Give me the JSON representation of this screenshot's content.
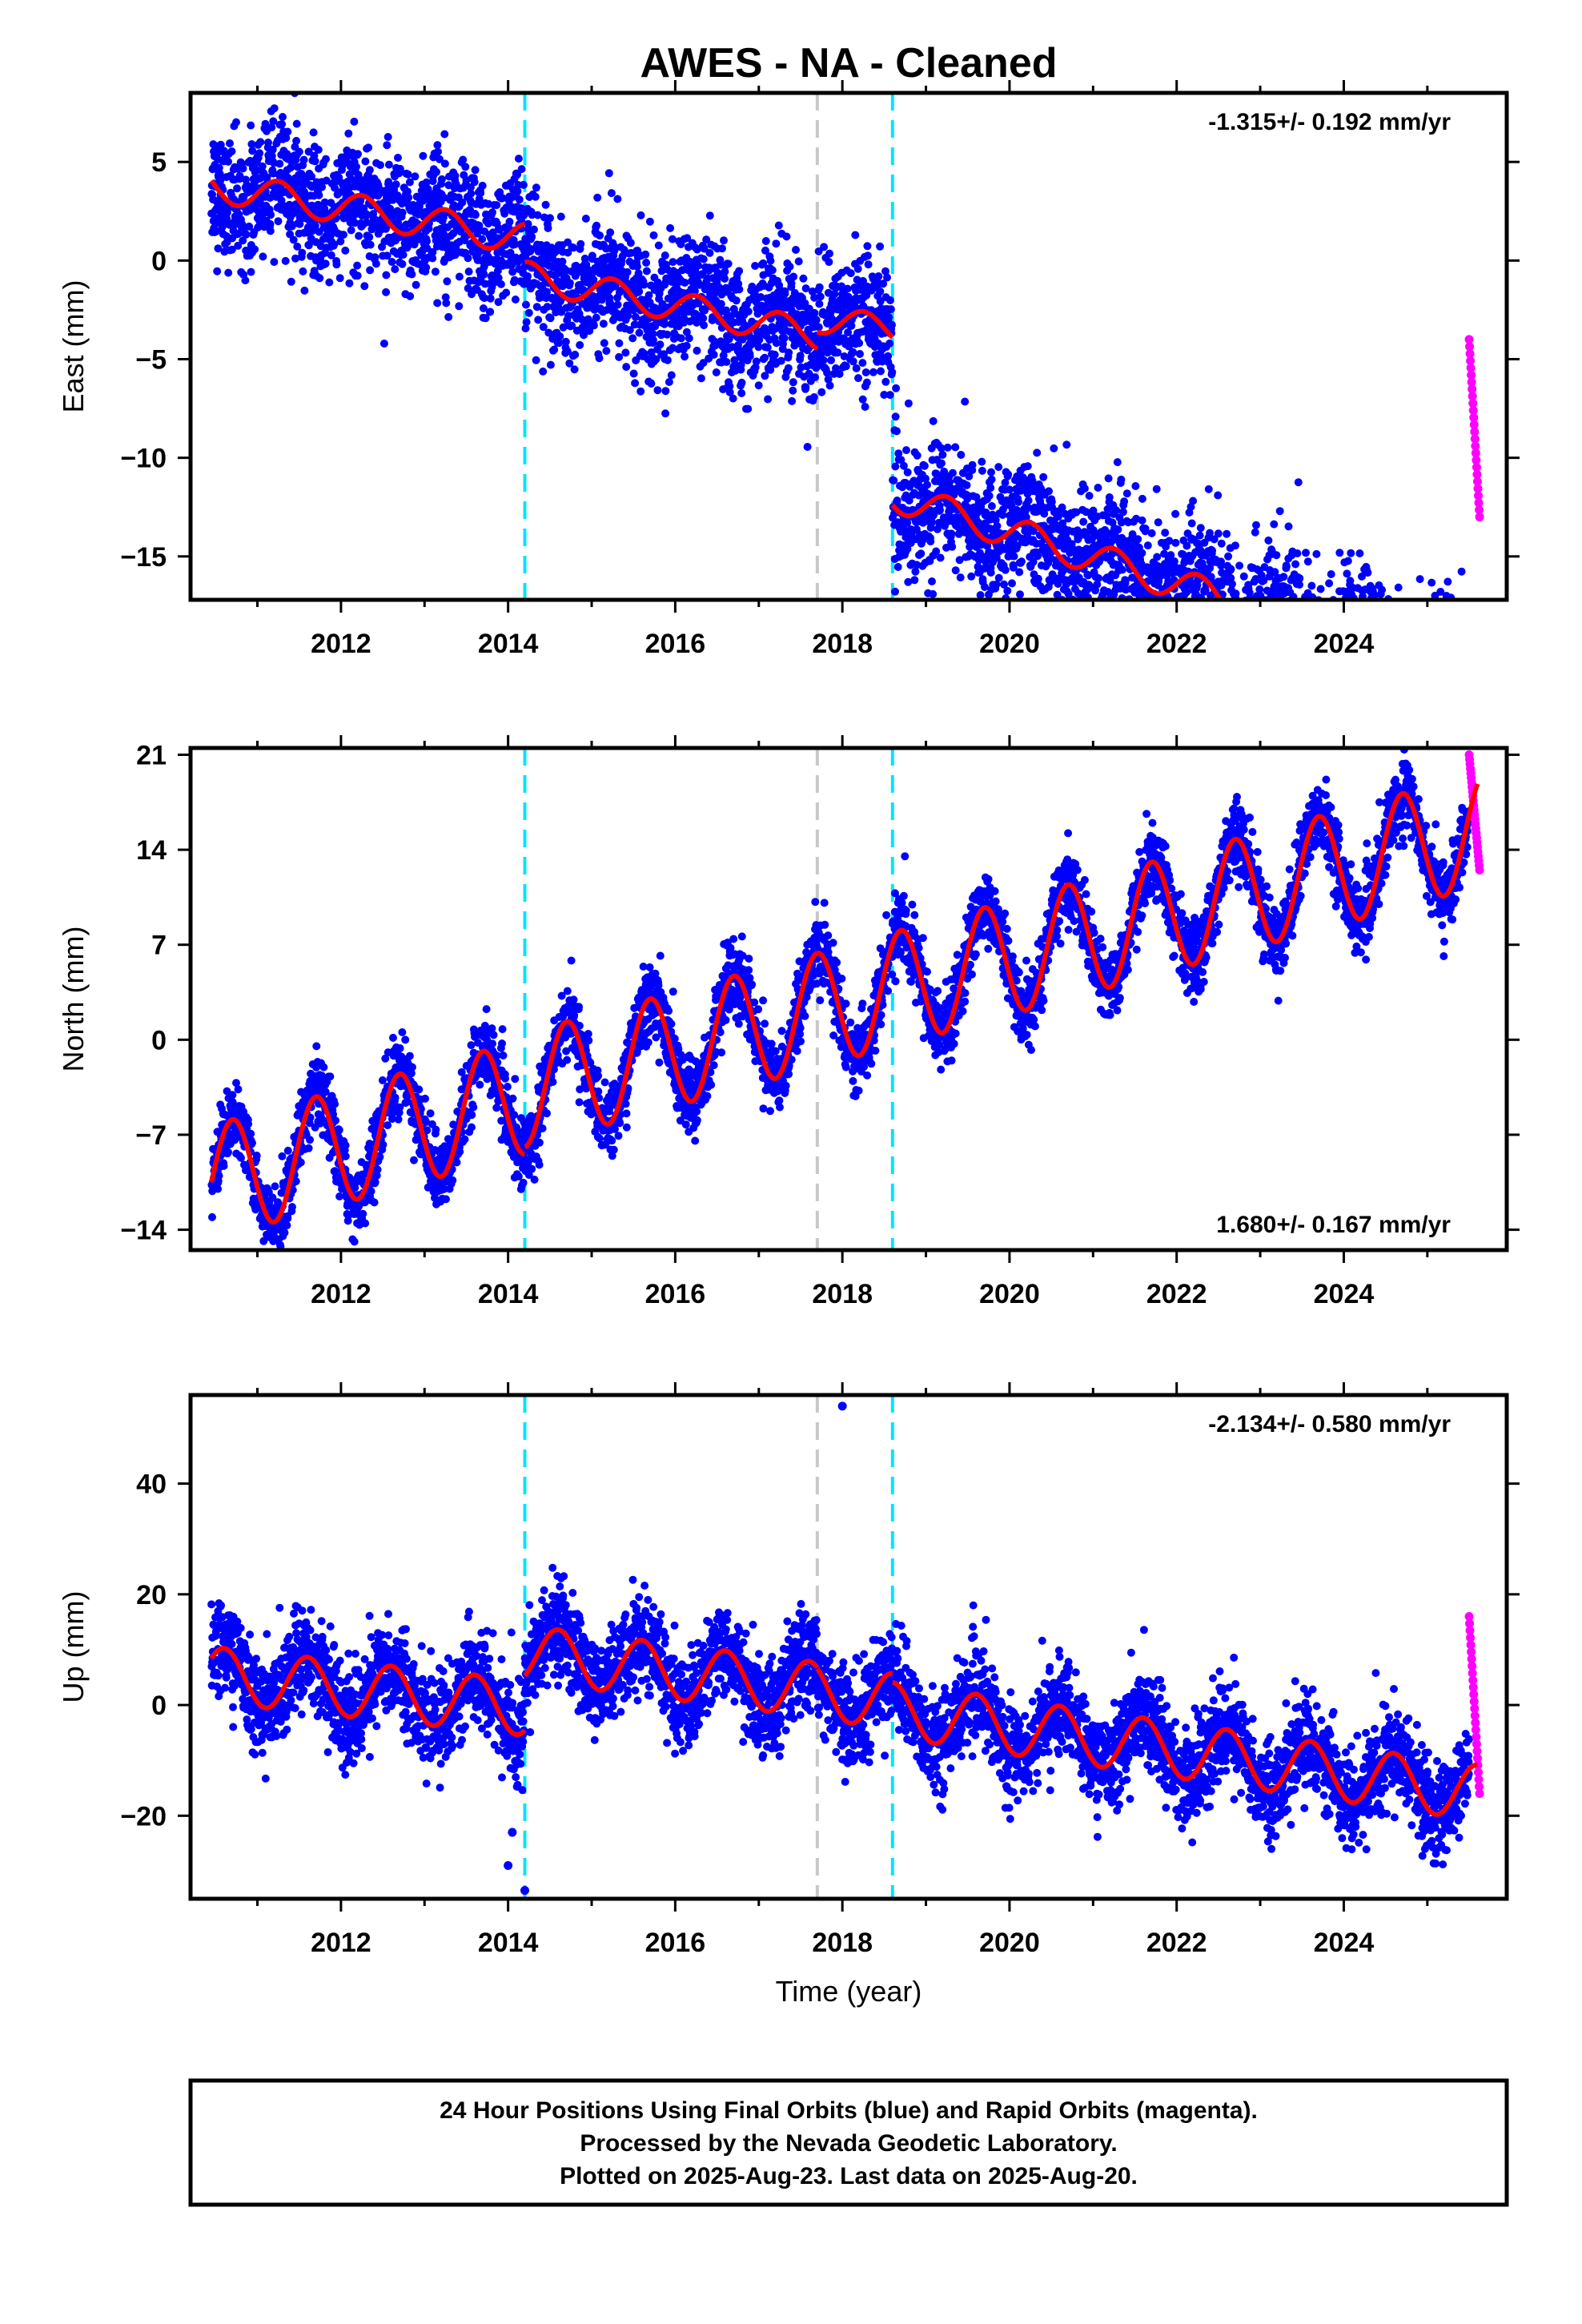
{
  "title": "AWES  - NA - Cleaned",
  "footer": {
    "lines": [
      "24 Hour Positions Using Final Orbits (blue) and Rapid Orbits (magenta).",
      "Processed by the Nevada Geodetic Laboratory.",
      "Plotted on 2025-Aug-23. Last data on 2025-Aug-20."
    ]
  },
  "colors": {
    "final_orbits": "#0000ff",
    "rapid_orbits": "#ff00ff",
    "model": "#ff0000",
    "equipment_change": "#00e5ff",
    "earthquake": "#c8c8c8"
  },
  "chart_data": [
    {
      "type": "scatter",
      "ylabel": "East (mm)",
      "xlabel": "",
      "xlim": [
        2010.2,
        2025.95
      ],
      "ylim": [
        -17.2,
        8.5
      ],
      "xticks": [
        2012,
        2014,
        2016,
        2018,
        2020,
        2022,
        2024
      ],
      "yticks": [
        5,
        0,
        -5,
        -10,
        -15
      ],
      "rate_label": "-1.315+/- 0.192 mm/yr",
      "rate_position": "top-right",
      "vlines": [
        {
          "x": 2014.2,
          "kind": "equipment_change"
        },
        {
          "x": 2017.7,
          "kind": "earthquake"
        },
        {
          "x": 2018.6,
          "kind": "equipment_change"
        }
      ],
      "model": {
        "segments": [
          {
            "x0": 2010.45,
            "x1": 2014.2,
            "y0": 3.8,
            "slope": -0.72,
            "amp": 0.8,
            "phase": 0.0
          },
          {
            "x0": 2014.2,
            "x1": 2017.7,
            "y0": 2.4,
            "slope": -0.85,
            "amp": 0.75,
            "phase": 0.0
          },
          {
            "x0": 2017.7,
            "x1": 2018.6,
            "y0": 1.4,
            "slope": -0.6,
            "amp": 0.7,
            "phase": 0.0
          },
          {
            "x0": 2018.6,
            "x1": 2025.6,
            "y0": -1.2,
            "slope": -1.315,
            "amp": 0.8,
            "phase": 0.0
          }
        ]
      },
      "final_orbits": {
        "x_start": 2010.45,
        "x_end": 2025.5,
        "noise": 1.6
      },
      "rapid_orbits": {
        "x_start": 2025.5,
        "x_end": 2025.63,
        "y_range": [
          -13,
          -4
        ]
      }
    },
    {
      "type": "scatter",
      "ylabel": "North (mm)",
      "xlabel": "",
      "xlim": [
        2010.2,
        2025.95
      ],
      "ylim": [
        -15.5,
        21.5
      ],
      "xticks": [
        2012,
        2014,
        2016,
        2018,
        2020,
        2022,
        2024
      ],
      "yticks": [
        21,
        14,
        7,
        0,
        -7,
        -14
      ],
      "rate_label": "1.680+/- 0.167 mm/yr",
      "rate_position": "bottom-right",
      "vlines": [
        {
          "x": 2014.2,
          "kind": "equipment_change"
        },
        {
          "x": 2017.7,
          "kind": "earthquake"
        },
        {
          "x": 2018.6,
          "kind": "equipment_change"
        }
      ],
      "model": {
        "segments": [
          {
            "x0": 2010.45,
            "x1": 2014.2,
            "y0": -10.5,
            "slope": 1.68,
            "amp": 4.2,
            "phase": 0.45
          },
          {
            "x0": 2014.2,
            "x1": 2017.7,
            "y0": -10.0,
            "slope": 1.68,
            "amp": 4.2,
            "phase": 0.45
          },
          {
            "x0": 2017.7,
            "x1": 2018.6,
            "y0": -10.0,
            "slope": 1.68,
            "amp": 4.2,
            "phase": 0.45
          },
          {
            "x0": 2018.6,
            "x1": 2025.6,
            "y0": -10.0,
            "slope": 1.68,
            "amp": 4.2,
            "phase": 0.45
          }
        ]
      },
      "final_orbits": {
        "x_start": 2010.45,
        "x_end": 2025.5,
        "noise": 1.3
      },
      "rapid_orbits": {
        "x_start": 2025.5,
        "x_end": 2025.63,
        "y_range": [
          12.5,
          21
        ]
      }
    },
    {
      "type": "scatter",
      "ylabel": "Up (mm)",
      "xlabel": "Time (year)",
      "xlim": [
        2010.2,
        2025.95
      ],
      "ylim": [
        -35,
        56
      ],
      "xticks": [
        2012,
        2014,
        2016,
        2018,
        2020,
        2022,
        2024
      ],
      "yticks": [
        40,
        20,
        0,
        -20
      ],
      "rate_label": "-2.134+/- 0.580 mm/yr",
      "rate_position": "top-right",
      "vlines": [
        {
          "x": 2014.2,
          "kind": "equipment_change"
        },
        {
          "x": 2017.7,
          "kind": "earthquake"
        },
        {
          "x": 2018.6,
          "kind": "equipment_change"
        }
      ],
      "model": {
        "segments": [
          {
            "x0": 2010.45,
            "x1": 2014.2,
            "y0": 5.5,
            "slope": -1.6,
            "amp": 5.0,
            "phase": 0.35
          },
          {
            "x0": 2014.2,
            "x1": 2017.7,
            "y0": 16.5,
            "slope": -1.9,
            "amp": 5.0,
            "phase": 0.35
          },
          {
            "x0": 2017.7,
            "x1": 2018.6,
            "y0": 17.0,
            "slope": -2.0,
            "amp": 5.0,
            "phase": 0.35
          },
          {
            "x0": 2018.6,
            "x1": 2025.6,
            "y0": 16.5,
            "slope": -2.134,
            "amp": 5.0,
            "phase": 0.35
          }
        ]
      },
      "final_orbits": {
        "x_start": 2010.45,
        "x_end": 2025.5,
        "noise": 4.2
      },
      "outliers": [
        {
          "x": 2018.0,
          "y": 54
        },
        {
          "x": 2014.2,
          "y": -33.5
        },
        {
          "x": 2014.0,
          "y": -29
        },
        {
          "x": 2014.05,
          "y": -23
        }
      ],
      "rapid_orbits": {
        "x_start": 2025.5,
        "x_end": 2025.63,
        "y_range": [
          -16,
          16
        ]
      }
    }
  ]
}
